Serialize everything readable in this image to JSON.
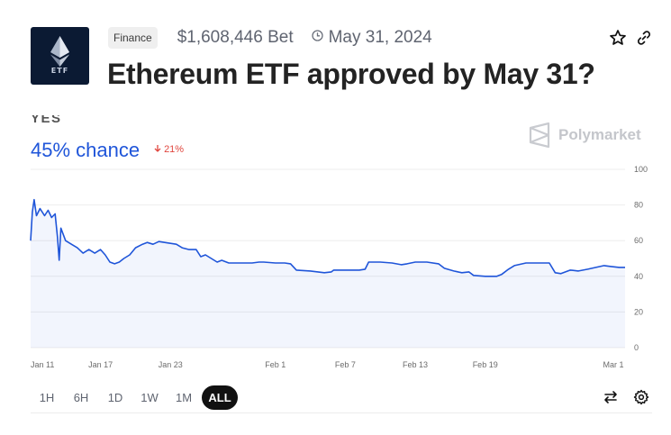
{
  "market": {
    "logo_text": "ETF",
    "category": "Finance",
    "volume": "$1,608,446 Bet",
    "end_date": "May 31, 2024",
    "title": "Ethereum ETF approved by May 31?"
  },
  "outcome": {
    "label": "YES",
    "chance": "45% chance",
    "change": "21%",
    "change_direction": "down"
  },
  "brand": {
    "name": "Polymarket"
  },
  "icons": {
    "clock": "clock-icon",
    "star": "star-icon",
    "link": "link-icon",
    "swap": "swap-arrows-icon",
    "settings": "gear-icon",
    "change_arrow": "arrow-down-icon"
  },
  "colors": {
    "accent": "#1f55d9",
    "down": "#e0463e",
    "active_range": "#111111"
  },
  "ranges": [
    {
      "label": "1H",
      "active": false
    },
    {
      "label": "6H",
      "active": false
    },
    {
      "label": "1D",
      "active": false
    },
    {
      "label": "1W",
      "active": false
    },
    {
      "label": "1M",
      "active": false
    },
    {
      "label": "ALL",
      "active": true
    }
  ],
  "chart_data": {
    "type": "line",
    "ylim": [
      0,
      100
    ],
    "yticks": [
      0,
      20,
      40,
      60,
      80,
      100
    ],
    "grid": true,
    "xtick_labels": [
      {
        "label": "Jan 11",
        "t": 0
      },
      {
        "label": "Jan 17",
        "t": 6
      },
      {
        "label": "Jan 23",
        "t": 12
      },
      {
        "label": "Feb 1",
        "t": 21
      },
      {
        "label": "Feb 7",
        "t": 27
      },
      {
        "label": "Feb 13",
        "t": 33
      },
      {
        "label": "Feb 19",
        "t": 39
      },
      {
        "label": "Mar 1",
        "t": 50
      }
    ],
    "xlim": [
      0,
      51
    ],
    "series": [
      {
        "color": "#1f55d9",
        "points": [
          [
            0,
            60
          ],
          [
            0.15,
            76
          ],
          [
            0.3,
            83
          ],
          [
            0.5,
            74
          ],
          [
            0.8,
            78
          ],
          [
            1.2,
            74
          ],
          [
            1.5,
            77
          ],
          [
            1.8,
            73
          ],
          [
            2.1,
            75
          ],
          [
            2.3,
            62
          ],
          [
            2.45,
            49
          ],
          [
            2.6,
            67
          ],
          [
            3,
            60
          ],
          [
            3.5,
            58
          ],
          [
            4,
            56
          ],
          [
            4.5,
            53
          ],
          [
            5,
            55
          ],
          [
            5.5,
            53
          ],
          [
            6,
            55
          ],
          [
            6.4,
            52
          ],
          [
            6.8,
            48
          ],
          [
            7.2,
            47
          ],
          [
            7.6,
            48
          ],
          [
            8,
            50
          ],
          [
            8.5,
            52
          ],
          [
            9,
            56
          ],
          [
            9.6,
            58
          ],
          [
            10,
            59
          ],
          [
            10.5,
            58
          ],
          [
            11,
            59.5
          ],
          [
            11.5,
            59
          ],
          [
            12,
            58.5
          ],
          [
            12.5,
            58
          ],
          [
            13,
            56
          ],
          [
            13.6,
            55
          ],
          [
            14.2,
            55
          ],
          [
            14.6,
            51
          ],
          [
            15,
            52
          ],
          [
            15.5,
            50
          ],
          [
            16,
            48
          ],
          [
            16.4,
            49
          ],
          [
            17,
            47.5
          ],
          [
            18,
            47.5
          ],
          [
            19,
            47.5
          ],
          [
            19.6,
            48
          ],
          [
            20,
            48
          ],
          [
            21,
            47.5
          ],
          [
            21.8,
            47.5
          ],
          [
            22.3,
            47
          ],
          [
            22.8,
            43.5
          ],
          [
            24,
            43
          ],
          [
            25.2,
            42
          ],
          [
            25.8,
            42.5
          ],
          [
            26,
            43.5
          ],
          [
            27,
            43.5
          ],
          [
            28.2,
            43.5
          ],
          [
            28.7,
            44
          ],
          [
            29,
            48
          ],
          [
            30,
            48
          ],
          [
            31,
            47.5
          ],
          [
            31.8,
            46.5
          ],
          [
            32.3,
            47
          ],
          [
            33,
            48
          ],
          [
            34,
            48
          ],
          [
            35,
            47
          ],
          [
            35.5,
            44.5
          ],
          [
            36.3,
            43
          ],
          [
            37,
            42
          ],
          [
            37.6,
            42.5
          ],
          [
            38,
            40.5
          ],
          [
            39,
            40
          ],
          [
            40,
            40
          ],
          [
            40.4,
            41
          ],
          [
            41,
            44
          ],
          [
            41.5,
            46
          ],
          [
            42.5,
            47.5
          ],
          [
            43.5,
            47.5
          ],
          [
            44.5,
            47.5
          ],
          [
            45,
            42
          ],
          [
            45.5,
            41.5
          ],
          [
            46.3,
            43.5
          ],
          [
            47,
            43
          ],
          [
            47.8,
            44
          ],
          [
            48.5,
            45
          ],
          [
            49.2,
            46
          ],
          [
            49.8,
            45.5
          ],
          [
            50.5,
            45
          ],
          [
            51,
            45
          ]
        ]
      }
    ]
  }
}
